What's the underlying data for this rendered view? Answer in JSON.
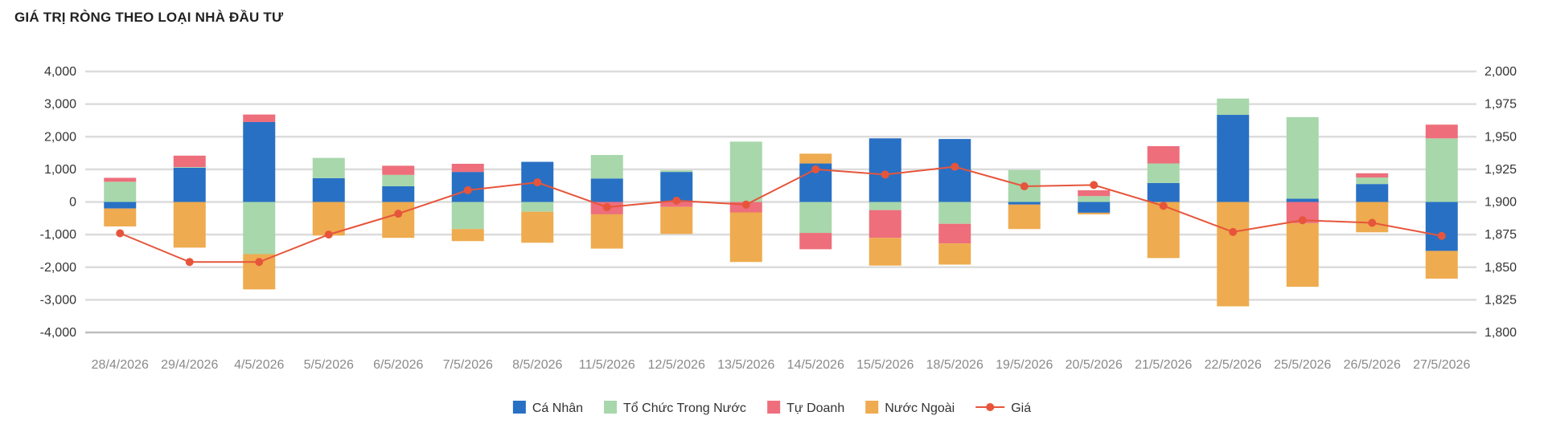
{
  "title": "GIÁ TRỊ RÒNG THEO LOẠI NHÀ ĐẦU TƯ",
  "chart_data": {
    "type": "bar",
    "stacked": true,
    "title": "GIÁ TRỊ RÒNG THEO LOẠI NHÀ ĐẦU TƯ",
    "categories": [
      "28/4/2026",
      "29/4/2026",
      "4/5/2026",
      "5/5/2026",
      "6/5/2026",
      "7/5/2026",
      "8/5/2026",
      "11/5/2026",
      "12/5/2026",
      "13/5/2026",
      "14/5/2026",
      "15/5/2026",
      "18/5/2026",
      "19/5/2026",
      "20/5/2026",
      "21/5/2026",
      "22/5/2026",
      "25/5/2026",
      "26/5/2026",
      "27/5/2026"
    ],
    "ylim": [
      -4000,
      4000
    ],
    "yticks": [
      -4000,
      -3000,
      -2000,
      -1000,
      0,
      1000,
      2000,
      3000,
      4000
    ],
    "y2lim": [
      1800,
      2000
    ],
    "y2ticks": [
      1800,
      1825,
      1850,
      1875,
      1900,
      1925,
      1950,
      1975,
      2000
    ],
    "grid": true,
    "legend_position": "bottom",
    "series": [
      {
        "name": "Cá Nhân",
        "type": "bar",
        "axis": "left",
        "color": "#2870c4",
        "values": [
          -200,
          1050,
          2450,
          730,
          480,
          920,
          1230,
          720,
          920,
          0,
          1180,
          1950,
          1930,
          -80,
          -330,
          580,
          2670,
          100,
          550,
          -1500
        ]
      },
      {
        "name": "Tổ Chức Trong Nước",
        "type": "bar",
        "axis": "left",
        "color": "#a7d7ab",
        "values": [
          620,
          20,
          -1600,
          620,
          350,
          -830,
          -300,
          720,
          50,
          1850,
          -950,
          -250,
          -670,
          980,
          180,
          600,
          500,
          2500,
          200,
          1950
        ]
      },
      {
        "name": "Tự Doanh",
        "type": "bar",
        "axis": "left",
        "color": "#ee6e7c",
        "values": [
          120,
          350,
          230,
          0,
          280,
          250,
          0,
          -380,
          -150,
          -320,
          -500,
          -850,
          -600,
          0,
          180,
          530,
          0,
          -650,
          130,
          420
        ]
      },
      {
        "name": "Nước Ngoài",
        "type": "bar",
        "axis": "left",
        "color": "#eeab4f",
        "values": [
          -550,
          -1400,
          -1080,
          -1030,
          -1100,
          -370,
          -950,
          -1050,
          -830,
          -1520,
          300,
          -850,
          -650,
          -750,
          -50,
          -1720,
          -3200,
          -1950,
          -930,
          -850
        ]
      },
      {
        "name": "Giá",
        "type": "line",
        "axis": "right",
        "color": "#e6553b",
        "values": [
          1876,
          1854,
          1854,
          1875,
          1891,
          1909,
          1915,
          1896,
          1901,
          1898,
          1925,
          1921,
          1927,
          1912,
          1913,
          1897,
          1877,
          1886,
          1884,
          1874
        ]
      }
    ]
  }
}
